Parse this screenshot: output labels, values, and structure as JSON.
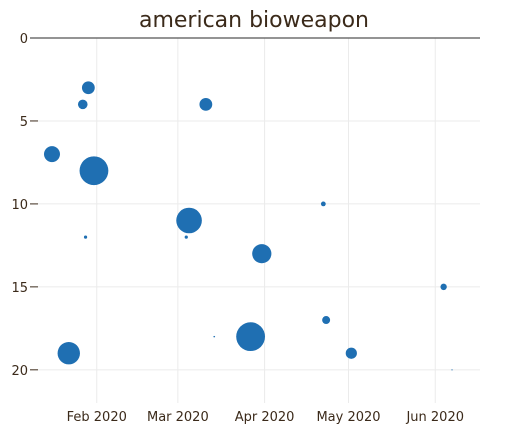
{
  "chart_data": {
    "type": "scatter",
    "title": "american bioweapon",
    "xlabel": "",
    "ylabel": "",
    "x_axis": {
      "type": "date",
      "range": [
        "2020-01-11",
        "2020-06-17"
      ],
      "ticks": [
        {
          "value": "2020-02-01",
          "label": "Feb 2020"
        },
        {
          "value": "2020-03-01",
          "label": "Mar 2020"
        },
        {
          "value": "2020-04-01",
          "label": "Apr 2020"
        },
        {
          "value": "2020-05-01",
          "label": "May 2020"
        },
        {
          "value": "2020-06-01",
          "label": "Jun 2020"
        }
      ]
    },
    "y_axis": {
      "reversed": true,
      "range": [
        0,
        22
      ],
      "ticks": [
        0,
        5,
        10,
        15,
        20
      ]
    },
    "grid": true,
    "legend": "none",
    "marker_color": "#1f6fb2",
    "points": [
      {
        "x": "2020-01-29",
        "y": 3,
        "size": 4
      },
      {
        "x": "2020-01-27",
        "y": 4,
        "size": 3
      },
      {
        "x": "2020-01-16",
        "y": 7,
        "size": 5
      },
      {
        "x": "2020-01-31",
        "y": 8,
        "size": 9
      },
      {
        "x": "2020-01-28",
        "y": 12,
        "size": 1
      },
      {
        "x": "2020-01-22",
        "y": 19,
        "size": 7
      },
      {
        "x": "2020-03-11",
        "y": 4,
        "size": 4
      },
      {
        "x": "2020-03-05",
        "y": 11,
        "size": 8
      },
      {
        "x": "2020-03-04",
        "y": 12,
        "size": 1
      },
      {
        "x": "2020-03-14",
        "y": 18,
        "size": 0.5
      },
      {
        "x": "2020-03-27",
        "y": 18,
        "size": 9
      },
      {
        "x": "2020-03-31",
        "y": 13,
        "size": 6
      },
      {
        "x": "2020-04-22",
        "y": 10,
        "size": 1.5
      },
      {
        "x": "2020-04-23",
        "y": 17,
        "size": 2.5
      },
      {
        "x": "2020-05-02",
        "y": 19,
        "size": 3.5
      },
      {
        "x": "2020-06-04",
        "y": 15,
        "size": 2
      },
      {
        "x": "2020-06-07",
        "y": 20,
        "size": 0.3
      }
    ]
  }
}
